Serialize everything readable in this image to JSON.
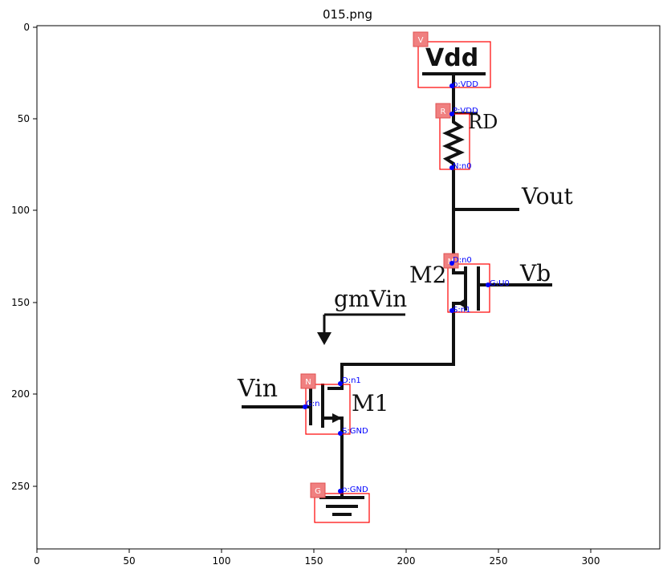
{
  "figure": {
    "title": "015.png",
    "x_ticks": [
      "0",
      "50",
      "100",
      "150",
      "200",
      "250",
      "300"
    ],
    "y_ticks": [
      "0",
      "50",
      "100",
      "150",
      "200",
      "250"
    ]
  },
  "circuit_labels": {
    "vdd": "Vdd",
    "rd": "RD",
    "vout": "Vout",
    "m2": "M2",
    "vb": "Vb",
    "gmvin": "gmVin",
    "vin": "Vin",
    "m1": "M1"
  },
  "component_tags": {
    "v": "V",
    "r": "R",
    "m2": "M",
    "n": "N",
    "g": "G"
  },
  "pin_labels": {
    "vdd_p": "p:VDD",
    "r_p": "P:VDD",
    "r_n": "N:n0",
    "m2_d": "D:n0",
    "m2_g": "G:U0",
    "m2_s": "S:n1",
    "m1_d": "D:n1",
    "m1_g": "G:n",
    "m1_s": "S:GND",
    "gnd_p": "p:GND"
  },
  "colors": {
    "box": "#ff0000",
    "tag": "#f08080",
    "pin": "#0000ff",
    "wire": "#111111"
  }
}
